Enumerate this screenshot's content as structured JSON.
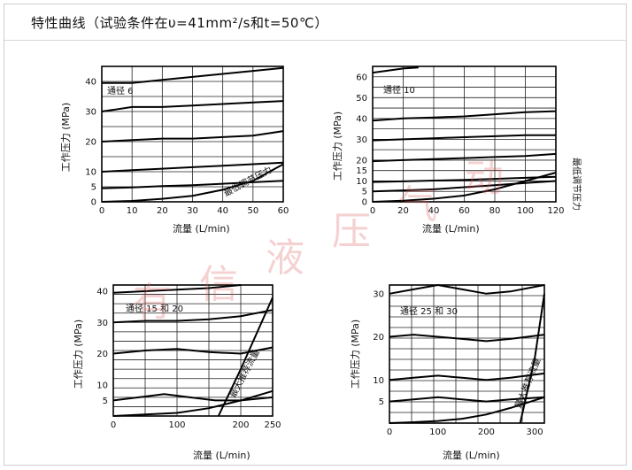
{
  "header": {
    "title": "特性曲线（试验条件在υ=41mm²/s和t=50℃）"
  },
  "watermark": [
    "有",
    "信",
    "液",
    "压",
    "气",
    "动"
  ],
  "chart_data": [
    {
      "type": "line",
      "ylabel": "工作压力 (MPa)",
      "xlabel": "流量 (L/min)",
      "xlim": [
        0,
        60
      ],
      "ylim": [
        0,
        45
      ],
      "xticks": [
        0,
        10,
        20,
        30,
        40,
        50,
        60
      ],
      "yticks": [
        0,
        5,
        10,
        20,
        30,
        40
      ],
      "grid": true,
      "annotations": [
        {
          "text": "通径 6"
        },
        {
          "text": "最低调节压力"
        }
      ],
      "series": [
        {
          "x": [
            0,
            10,
            20,
            30,
            40,
            50,
            60
          ],
          "y": [
            39.5,
            39.5,
            40.5,
            41.5,
            42.5,
            43.5,
            44.5
          ]
        },
        {
          "x": [
            0,
            10,
            20,
            30,
            40,
            50,
            60
          ],
          "y": [
            30,
            31.5,
            31.5,
            32,
            32.5,
            33,
            33.5
          ]
        },
        {
          "x": [
            0,
            10,
            20,
            30,
            40,
            50,
            60
          ],
          "y": [
            20,
            20.5,
            21,
            21,
            21.5,
            22,
            23.5
          ]
        },
        {
          "x": [
            0,
            10,
            20,
            30,
            40,
            50,
            60
          ],
          "y": [
            10,
            10.5,
            11,
            11.5,
            12,
            12.5,
            13
          ]
        },
        {
          "x": [
            0,
            10,
            20,
            30,
            40,
            50,
            60
          ],
          "y": [
            4.5,
            4.8,
            5.2,
            5.5,
            6,
            6.5,
            7
          ]
        },
        {
          "x": [
            0,
            10,
            20,
            30,
            40,
            50,
            60
          ],
          "y": [
            0,
            0.3,
            1,
            2,
            4,
            7,
            12.5
          ]
        }
      ]
    },
    {
      "type": "line",
      "ylabel": "工作压力 (MPa)",
      "xlabel": "流量 (L/min)",
      "xlim": [
        0,
        120
      ],
      "ylim": [
        0,
        65
      ],
      "xticks": [
        0,
        20,
        40,
        60,
        80,
        100,
        120
      ],
      "yticks": [
        0,
        5,
        10,
        15,
        20,
        30,
        40,
        50,
        60
      ],
      "grid": true,
      "annotations": [
        {
          "text": "通径 10"
        },
        {
          "text": "最低调节压力"
        }
      ],
      "series": [
        {
          "x": [
            0,
            10,
            20,
            30
          ],
          "y": [
            62,
            63,
            64,
            64.5
          ]
        },
        {
          "x": [
            0,
            20,
            40,
            60,
            80,
            100,
            120
          ],
          "y": [
            39,
            40,
            40.5,
            41,
            42,
            43,
            43.5
          ]
        },
        {
          "x": [
            0,
            20,
            40,
            60,
            80,
            100,
            120
          ],
          "y": [
            29.5,
            30,
            30.5,
            31,
            31.5,
            32,
            32
          ]
        },
        {
          "x": [
            0,
            20,
            40,
            60,
            80,
            100,
            120
          ],
          "y": [
            19.5,
            20,
            20.5,
            21,
            21.5,
            22,
            23
          ]
        },
        {
          "x": [
            0,
            20,
            40,
            60,
            80,
            100,
            120
          ],
          "y": [
            9.5,
            9.8,
            10.2,
            10.5,
            11,
            11.5,
            12
          ]
        },
        {
          "x": [
            0,
            20,
            40,
            60,
            80,
            100,
            120
          ],
          "y": [
            5,
            5.5,
            6,
            7,
            8,
            9,
            10
          ]
        },
        {
          "x": [
            0,
            20,
            40,
            60,
            80,
            100,
            120
          ],
          "y": [
            0,
            0.5,
            1.5,
            3,
            6,
            10,
            14
          ]
        }
      ]
    },
    {
      "type": "line",
      "ylabel": "工作压力 (MPa)",
      "xlabel": "流量 (L/min)",
      "xlim": [
        0,
        250
      ],
      "ylim": [
        0,
        42
      ],
      "xticks": [
        0,
        100,
        200,
        250
      ],
      "yticks": [
        5,
        10,
        20,
        30,
        40
      ],
      "grid": true,
      "annotations": [
        {
          "text": "通径 15 和 20"
        },
        {
          "text": "最大推荐流量"
        }
      ],
      "series": [
        {
          "x": [
            0,
            50,
            100,
            150,
            200
          ],
          "y": [
            39.5,
            40,
            40.5,
            41,
            42
          ]
        },
        {
          "x": [
            0,
            50,
            100,
            150,
            200,
            250
          ],
          "y": [
            30,
            30.5,
            30.5,
            31,
            32,
            34
          ]
        },
        {
          "x": [
            0,
            50,
            100,
            150,
            200,
            250
          ],
          "y": [
            20,
            21,
            21.5,
            20.5,
            20,
            22
          ]
        },
        {
          "x": [
            0,
            40,
            80,
            120,
            160,
            200,
            250
          ],
          "y": [
            5,
            6,
            7,
            6,
            5,
            5,
            6
          ]
        },
        {
          "x": [
            0,
            50,
            100,
            150,
            200,
            250
          ],
          "y": [
            0,
            0.5,
            1,
            2.5,
            5,
            8
          ]
        },
        {
          "x": [
            165,
            200,
            250
          ],
          "y": [
            0,
            15,
            38
          ]
        }
      ]
    },
    {
      "type": "line",
      "ylabel": "工作压力 (MPa)",
      "xlabel": "流量 (L/min)",
      "xlim": [
        0,
        320
      ],
      "ylim": [
        0,
        32
      ],
      "xticks": [
        0,
        100,
        200,
        300
      ],
      "yticks": [
        5,
        10,
        20,
        30
      ],
      "grid": true,
      "annotations": [
        {
          "text": "通径 25 和 30"
        },
        {
          "text": "最大推荐流量"
        }
      ],
      "series": [
        {
          "x": [
            0,
            50,
            100,
            150,
            200,
            250,
            320
          ],
          "y": [
            30,
            31,
            32,
            31,
            30,
            30.5,
            32
          ]
        },
        {
          "x": [
            0,
            50,
            100,
            150,
            200,
            250,
            320
          ],
          "y": [
            20,
            20.5,
            20,
            19.5,
            19,
            19.5,
            20.5
          ]
        },
        {
          "x": [
            0,
            50,
            100,
            150,
            200,
            250,
            320
          ],
          "y": [
            10,
            10.5,
            11,
            10.5,
            10,
            10.5,
            11.5
          ]
        },
        {
          "x": [
            0,
            50,
            100,
            150,
            200,
            250,
            320
          ],
          "y": [
            5,
            5.5,
            6,
            5.5,
            5,
            5.5,
            6
          ]
        },
        {
          "x": [
            0,
            50,
            100,
            150,
            200,
            250,
            320
          ],
          "y": [
            0,
            0.2,
            0.5,
            1,
            2,
            3.5,
            6
          ]
        },
        {
          "x": [
            270,
            300,
            320
          ],
          "y": [
            0,
            15,
            30
          ]
        }
      ]
    }
  ]
}
